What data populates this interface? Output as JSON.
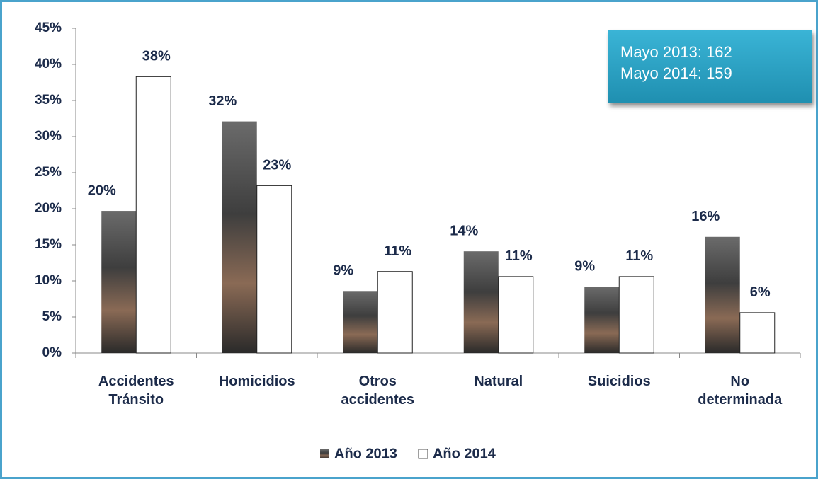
{
  "chart_data": {
    "type": "bar",
    "categories": [
      "Accidentes Tránsito",
      "Homicidios",
      "Otros accidentes",
      "Natural",
      "Suicidios",
      "No determinada"
    ],
    "series": [
      {
        "name": "Año 2013",
        "color": "#4a4a4a",
        "values": [
          19.7,
          32.1,
          8.6,
          14.1,
          9.2,
          16.1
        ],
        "value_labels": [
          "20%",
          "32%",
          "9%",
          "14%",
          "9%",
          "16%"
        ]
      },
      {
        "name": "Año 2014",
        "color": "#ffffff",
        "values": [
          38.3,
          23.2,
          11.3,
          10.6,
          10.6,
          5.6
        ],
        "value_labels": [
          "38%",
          "23%",
          "11%",
          "11%",
          "11%",
          "6%"
        ]
      }
    ],
    "ylim": [
      0,
      45
    ],
    "yticks": [
      {
        "value": 0,
        "label": "0%"
      },
      {
        "value": 5,
        "label": "5%"
      },
      {
        "value": 10,
        "label": "10%"
      },
      {
        "value": 15,
        "label": "15%"
      },
      {
        "value": 20,
        "label": "20%"
      },
      {
        "value": 25,
        "label": "25%"
      },
      {
        "value": 30,
        "label": "30%"
      },
      {
        "value": 35,
        "label": "35%"
      },
      {
        "value": 40,
        "label": "40%"
      },
      {
        "value": 45,
        "label": "45%"
      }
    ],
    "annotations": [
      "Mayo 2013: 162",
      "Mayo 2014: 159"
    ],
    "legend": "bottom"
  }
}
